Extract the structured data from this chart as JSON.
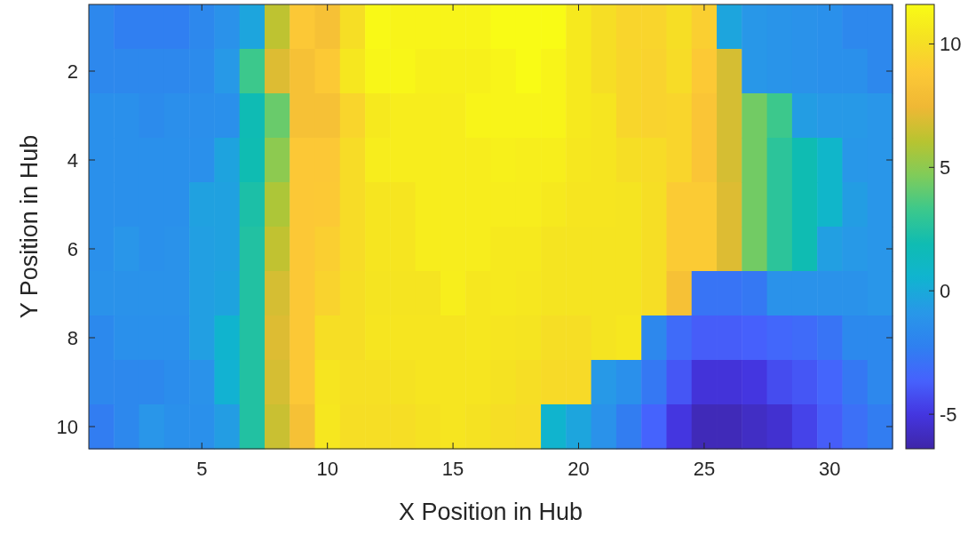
{
  "chart_data": {
    "type": "heatmap",
    "xlabel": "X Position in Hub",
    "ylabel": "Y Position in Hub",
    "categories": [
      null,
      null,
      null,
      null,
      "5",
      null,
      null,
      null,
      null,
      "10",
      null,
      null,
      null,
      null,
      "15",
      null,
      null,
      null,
      null,
      "20",
      null,
      null,
      null,
      null,
      "25",
      null,
      null,
      null,
      null,
      "30",
      null,
      null
    ],
    "y_categories": [
      null,
      "2",
      null,
      "4",
      null,
      "6",
      null,
      "8",
      null,
      "10"
    ],
    "cells": [
      [
        -1.8,
        -2.3,
        -2.3,
        -2.3,
        -1.8,
        -1.2,
        -0.2,
        6.2,
        8.8,
        8.2,
        10.0,
        11.5,
        11.2,
        11.2,
        11.2,
        11.2,
        11.6,
        11.6,
        11.6,
        10.6,
        10.0,
        9.5,
        9.5,
        10.0,
        9.2,
        -0.2,
        -0.9,
        -1.1,
        -1.2,
        -1.3,
        -1.8,
        -1.8
      ],
      [
        -1.8,
        -1.8,
        -1.8,
        -1.8,
        -1.6,
        -0.8,
        3.3,
        7.0,
        8.2,
        8.9,
        10.5,
        11.3,
        11.3,
        11.0,
        11.0,
        11.0,
        11.2,
        11.6,
        11.2,
        10.6,
        10.0,
        9.6,
        9.4,
        9.9,
        8.9,
        6.8,
        -0.9,
        -1.1,
        -1.2,
        -1.3,
        -1.3,
        -1.8
      ],
      [
        -1.3,
        -1.3,
        -1.6,
        -1.4,
        -1.4,
        -1.3,
        1.8,
        4.2,
        8.2,
        8.2,
        9.5,
        10.6,
        10.8,
        10.8,
        10.8,
        11.2,
        11.2,
        11.2,
        11.2,
        10.6,
        10.4,
        9.6,
        9.4,
        9.5,
        8.6,
        6.8,
        4.4,
        3.3,
        -0.6,
        -0.8,
        -0.8,
        -1.0
      ],
      [
        -1.3,
        -1.3,
        -1.3,
        -1.3,
        -1.3,
        -0.3,
        1.9,
        5.0,
        8.8,
        8.8,
        9.9,
        10.8,
        10.8,
        10.8,
        10.8,
        10.8,
        11.0,
        10.9,
        10.9,
        10.5,
        10.4,
        10.0,
        9.9,
        9.5,
        8.6,
        6.8,
        4.4,
        2.8,
        1.9,
        0.8,
        -0.9,
        -1.0
      ],
      [
        -1.3,
        -1.3,
        -1.3,
        -1.3,
        -0.4,
        -0.4,
        2.3,
        5.8,
        8.8,
        8.9,
        9.9,
        10.4,
        10.4,
        10.8,
        10.8,
        10.8,
        10.8,
        10.8,
        10.6,
        10.4,
        10.4,
        10.3,
        10.0,
        9.0,
        9.0,
        7.0,
        4.4,
        2.8,
        1.9,
        0.8,
        -0.6,
        -1.0
      ],
      [
        -1.3,
        -1.0,
        -1.3,
        -1.2,
        -0.5,
        -0.4,
        2.5,
        6.3,
        8.8,
        9.2,
        9.9,
        10.4,
        10.4,
        10.8,
        10.8,
        10.8,
        10.6,
        10.6,
        10.3,
        10.3,
        10.3,
        10.3,
        10.0,
        9.0,
        9.0,
        7.0,
        4.4,
        2.8,
        1.9,
        -0.5,
        -0.8,
        -1.0
      ],
      [
        -1.2,
        -1.2,
        -1.2,
        -1.2,
        -0.5,
        -0.3,
        2.5,
        6.8,
        8.8,
        9.4,
        10.0,
        10.3,
        10.3,
        10.3,
        10.9,
        10.5,
        10.6,
        10.5,
        10.3,
        10.3,
        10.3,
        10.3,
        10.0,
        8.2,
        -2.8,
        -2.8,
        -2.6,
        -1.2,
        -1.2,
        -1.2,
        -1.2,
        -1.0
      ],
      [
        -1.7,
        -1.3,
        -1.3,
        -1.3,
        -0.5,
        0.6,
        2.5,
        7.0,
        8.8,
        10.0,
        10.0,
        10.4,
        10.4,
        10.4,
        10.4,
        10.5,
        10.4,
        10.3,
        10.0,
        10.0,
        10.3,
        10.5,
        -1.8,
        -3.2,
        -3.8,
        -3.8,
        -3.7,
        -3.4,
        -3.2,
        -2.8,
        -1.7,
        -1.7
      ],
      [
        -1.8,
        -1.8,
        -1.8,
        -1.5,
        -1.2,
        0.4,
        2.5,
        6.8,
        8.8,
        10.4,
        10.1,
        10.1,
        10.2,
        10.4,
        10.4,
        10.4,
        10.2,
        10.0,
        9.8,
        9.8,
        -0.8,
        -1.3,
        -2.6,
        -4.0,
        -5.2,
        -5.2,
        -5.0,
        -4.3,
        -4.0,
        -3.5,
        -2.6,
        -1.8
      ],
      [
        -2.4,
        -1.8,
        -1.0,
        -1.3,
        -1.3,
        -0.6,
        2.5,
        6.5,
        8.2,
        10.5,
        10.0,
        10.0,
        10.0,
        10.2,
        10.4,
        10.2,
        10.0,
        9.9,
        0.6,
        -0.2,
        -1.2,
        -2.4,
        -3.6,
        -5.0,
        -6.0,
        -6.0,
        -5.7,
        -5.4,
        -4.6,
        -3.8,
        -3.0,
        -2.4
      ]
    ],
    "clim": [
      -6.4,
      11.6
    ],
    "cticks": [
      -5,
      0,
      5,
      10
    ]
  }
}
